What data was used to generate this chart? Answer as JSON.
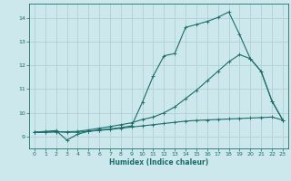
{
  "bg_color": "#cce8ec",
  "grid_color": "#b0d0d5",
  "line_color": "#1a6e6a",
  "xlabel": "Humidex (Indice chaleur)",
  "xlim": [
    -0.5,
    23.5
  ],
  "ylim": [
    8.5,
    14.6
  ],
  "yticks": [
    9,
    10,
    11,
    12,
    13,
    14
  ],
  "xticks": [
    0,
    1,
    2,
    3,
    4,
    5,
    6,
    7,
    8,
    9,
    10,
    11,
    12,
    13,
    14,
    15,
    16,
    17,
    18,
    19,
    20,
    21,
    22,
    23
  ],
  "line1_x": [
    0,
    1,
    2,
    3,
    4,
    5,
    6,
    7,
    8,
    9,
    10,
    11,
    12,
    13,
    14,
    15,
    16,
    17,
    18,
    19,
    20,
    21,
    22,
    23
  ],
  "line1_y": [
    9.18,
    9.22,
    9.25,
    8.85,
    9.1,
    9.22,
    9.28,
    9.32,
    9.38,
    9.45,
    10.45,
    11.55,
    12.4,
    12.5,
    13.6,
    13.72,
    13.85,
    14.02,
    14.25,
    13.3,
    12.28,
    11.75,
    10.5,
    9.7
  ],
  "line2_x": [
    0,
    1,
    2,
    3,
    4,
    5,
    6,
    7,
    8,
    9,
    10,
    11,
    12,
    13,
    14,
    15,
    16,
    17,
    18,
    19,
    20,
    21,
    22,
    23
  ],
  "line2_y": [
    9.18,
    9.18,
    9.2,
    9.2,
    9.22,
    9.28,
    9.35,
    9.42,
    9.5,
    9.58,
    9.72,
    9.82,
    10.0,
    10.25,
    10.6,
    10.95,
    11.35,
    11.75,
    12.15,
    12.45,
    12.28,
    11.75,
    10.5,
    9.7
  ],
  "line3_x": [
    0,
    1,
    2,
    3,
    4,
    5,
    6,
    7,
    8,
    9,
    10,
    11,
    12,
    13,
    14,
    15,
    16,
    17,
    18,
    19,
    20,
    21,
    22,
    23
  ],
  "line3_y": [
    9.18,
    9.18,
    9.2,
    9.18,
    9.18,
    9.22,
    9.26,
    9.3,
    9.35,
    9.4,
    9.45,
    9.5,
    9.55,
    9.6,
    9.65,
    9.68,
    9.7,
    9.72,
    9.74,
    9.76,
    9.78,
    9.8,
    9.82,
    9.7
  ]
}
